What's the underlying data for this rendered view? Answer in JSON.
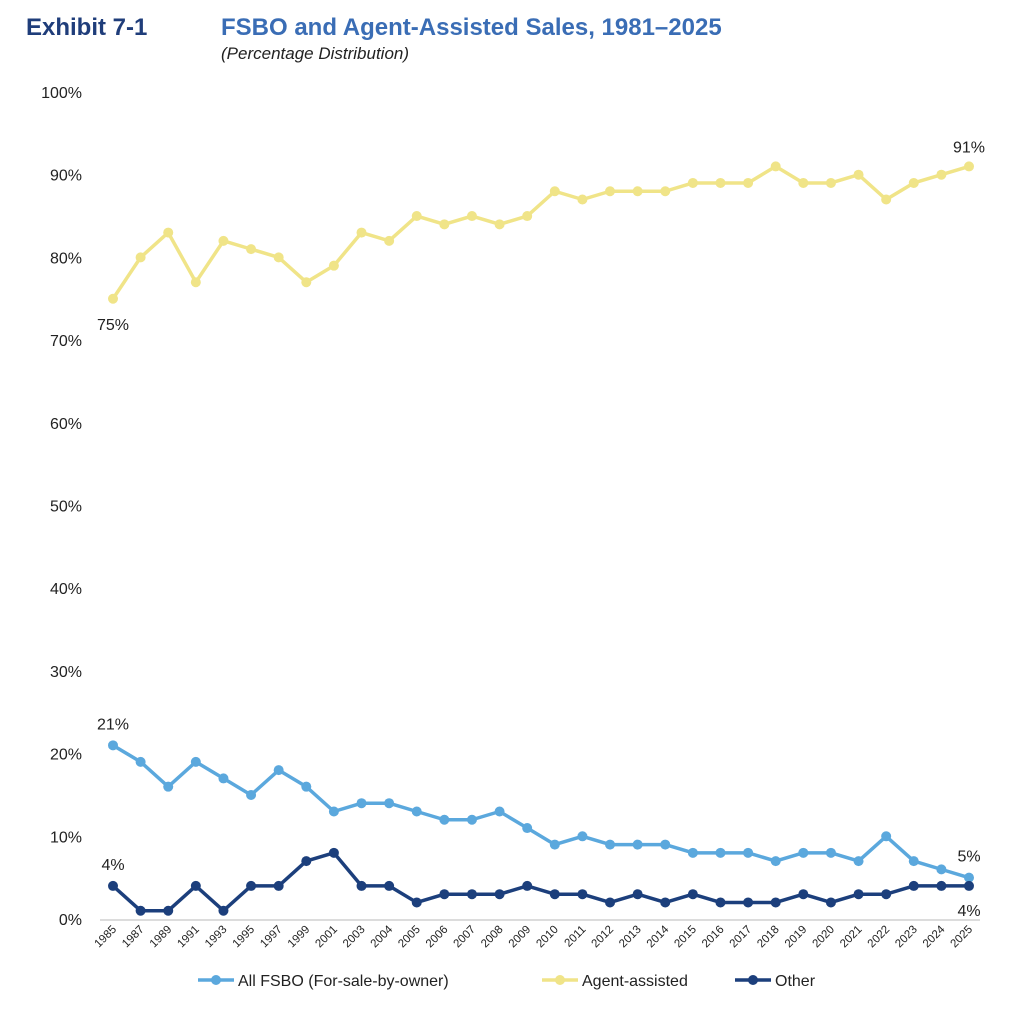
{
  "header": {
    "exhibit": "Exhibit 7-1",
    "title": "FSBO and Agent-Assisted Sales, 1981–2025",
    "subtitle": "(Percentage Distribution)"
  },
  "chart_data": {
    "type": "line",
    "title": "FSBO and Agent-Assisted Sales, 1981–2025",
    "subtitle": "(Percentage Distribution)",
    "categories": [
      "1985",
      "1987",
      "1989",
      "1991",
      "1993",
      "1995",
      "1997",
      "1999",
      "2001",
      "2003",
      "2004",
      "2005",
      "2006",
      "2007",
      "2008",
      "2009",
      "2010",
      "2011",
      "2012",
      "2013",
      "2014",
      "2015",
      "2016",
      "2017",
      "2018",
      "2019",
      "2020",
      "2021",
      "2022",
      "2023",
      "2024",
      "2025"
    ],
    "ylim": [
      0,
      100
    ],
    "yticks": [
      "0%",
      "10%",
      "20%",
      "30%",
      "40%",
      "50%",
      "60%",
      "70%",
      "80%",
      "90%",
      "100%"
    ],
    "grid": false,
    "legend": "bottom",
    "series": [
      {
        "name": "All FSBO (For-sale-by-owner)",
        "color": "#5ba8dd",
        "values": [
          21,
          19,
          16,
          19,
          17,
          15,
          18,
          16,
          13,
          14,
          14,
          13,
          12,
          12,
          13,
          11,
          9,
          10,
          9,
          9,
          9,
          8,
          8,
          8,
          7,
          8,
          8,
          7,
          10,
          7,
          6,
          5
        ],
        "labels": {
          "first": "21%",
          "last": "5%"
        }
      },
      {
        "name": "Agent-assisted",
        "color": "#f0e488",
        "values": [
          75,
          80,
          83,
          77,
          82,
          81,
          80,
          77,
          79,
          83,
          82,
          85,
          84,
          85,
          84,
          85,
          88,
          87,
          88,
          88,
          88,
          89,
          89,
          89,
          91,
          89,
          89,
          90,
          87,
          89,
          90,
          91
        ],
        "labels": {
          "first": "75%",
          "last": "91%"
        }
      },
      {
        "name": "Other",
        "color": "#1c3f7c",
        "values": [
          4,
          1,
          1,
          4,
          1,
          4,
          4,
          7,
          8,
          4,
          4,
          2,
          3,
          3,
          3,
          4,
          3,
          3,
          2,
          3,
          2,
          3,
          2,
          2,
          2,
          3,
          2,
          3,
          3,
          4,
          4,
          4
        ],
        "labels": {
          "first": "4%",
          "last": "4%"
        }
      }
    ]
  }
}
